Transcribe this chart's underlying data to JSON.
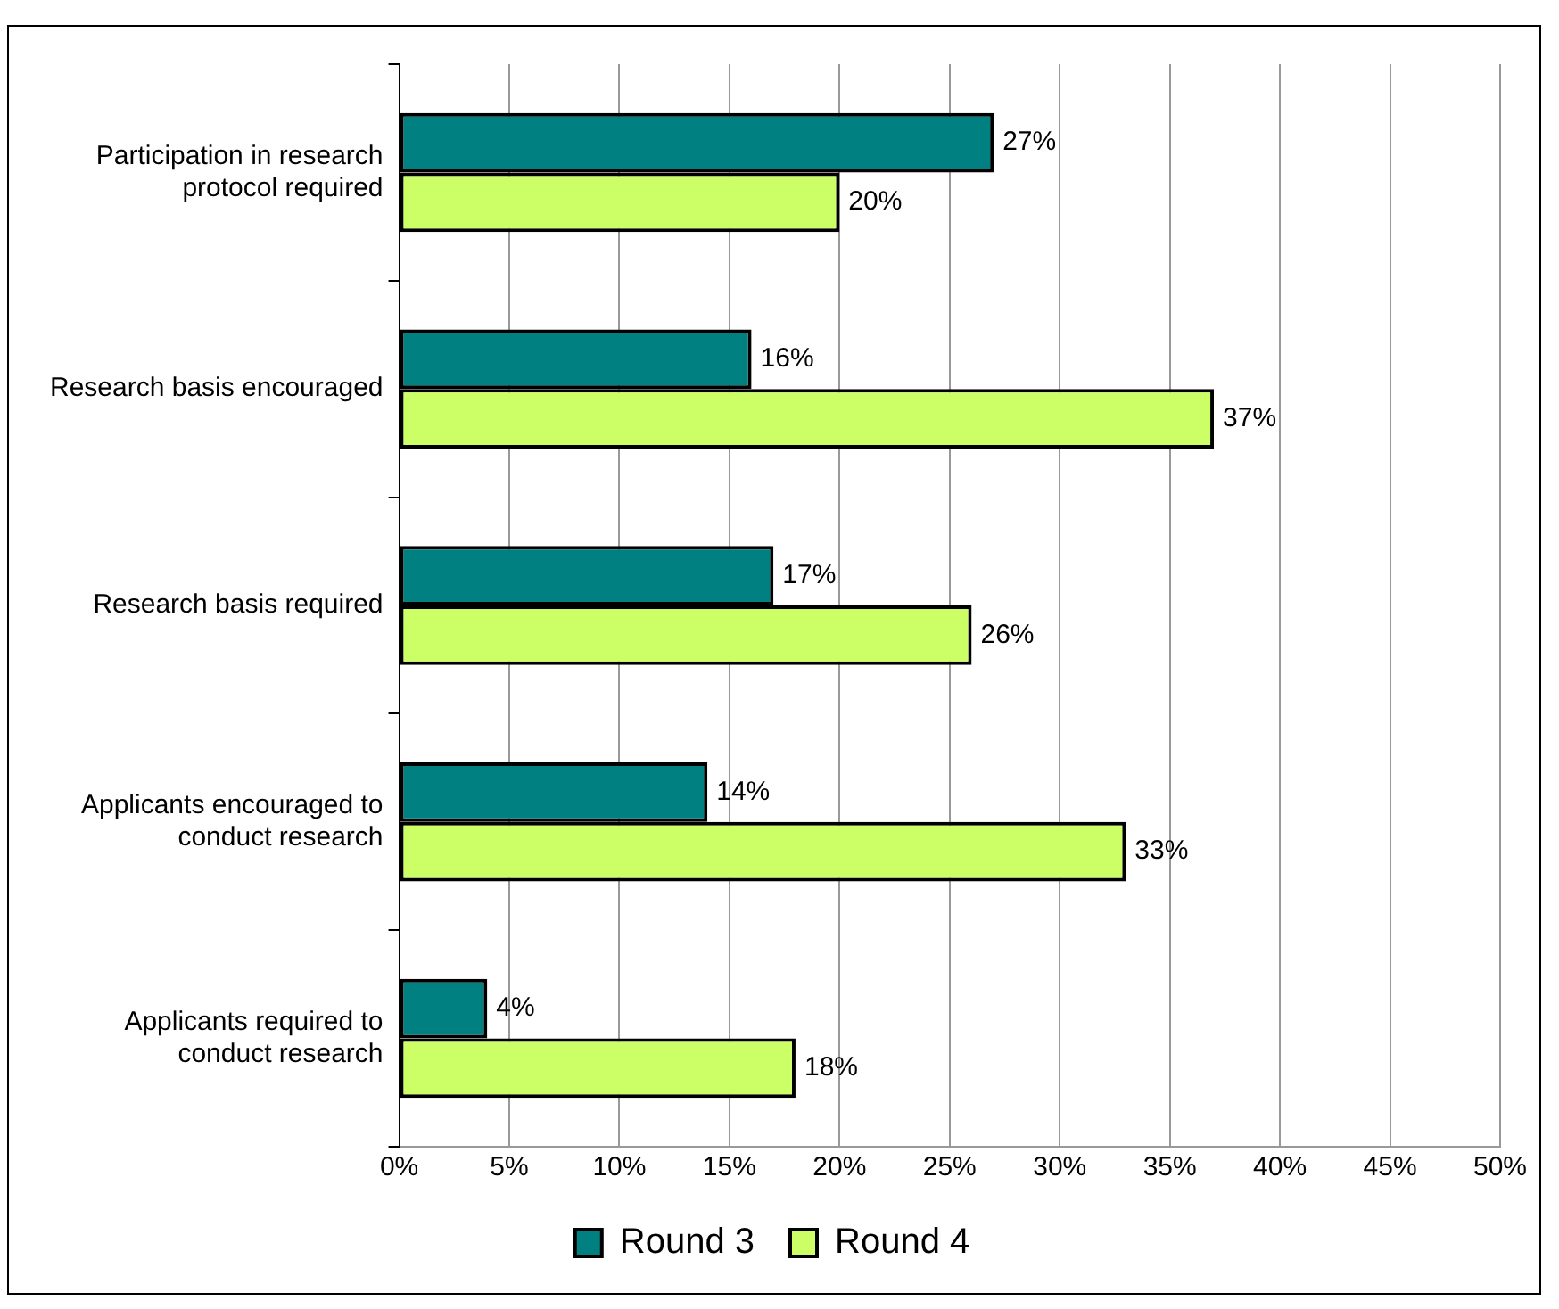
{
  "chart_data": {
    "type": "bar",
    "orientation": "horizontal",
    "categories": [
      "Participation in research protocol required",
      "Research basis encouraged",
      "Research basis required",
      "Applicants encouraged to conduct research",
      "Applicants required to conduct research"
    ],
    "series": [
      {
        "name": "Round 3",
        "color": "#008080",
        "values": [
          27,
          16,
          17,
          14,
          4
        ],
        "value_labels": [
          "27%",
          "16%",
          "17%",
          "14%",
          "4%"
        ]
      },
      {
        "name": "Round 4",
        "color": "#ccff66",
        "values": [
          20,
          37,
          26,
          33,
          18
        ],
        "value_labels": [
          "20%",
          "37%",
          "26%",
          "33%",
          "18%"
        ]
      }
    ],
    "xlim": [
      0,
      50
    ],
    "xticks": [
      {
        "value": 0,
        "label": "0%"
      },
      {
        "value": 5,
        "label": "5%"
      },
      {
        "value": 10,
        "label": "10%"
      },
      {
        "value": 15,
        "label": "15%"
      },
      {
        "value": 20,
        "label": "20%"
      },
      {
        "value": 25,
        "label": "25%"
      },
      {
        "value": 30,
        "label": "30%"
      },
      {
        "value": 35,
        "label": "35%"
      },
      {
        "value": 40,
        "label": "40%"
      },
      {
        "value": 45,
        "label": "45%"
      },
      {
        "value": 50,
        "label": "50%"
      }
    ],
    "grid": "x",
    "legend": "bottom"
  }
}
